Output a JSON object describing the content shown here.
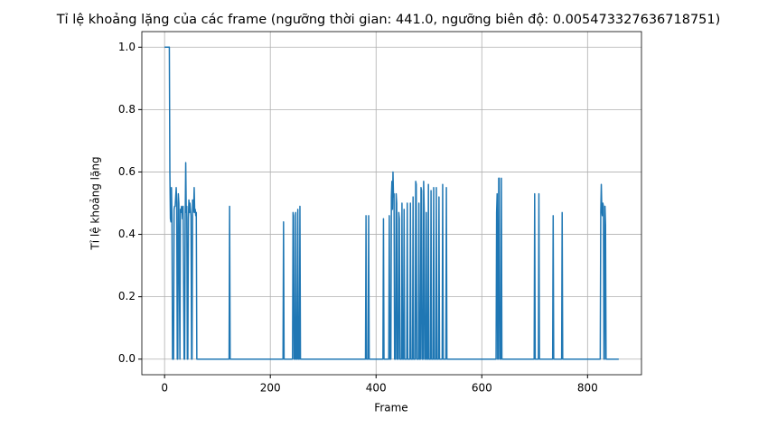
{
  "chart_data": {
    "type": "line",
    "title": "Tỉ lệ khoảng lặng của các frame (ngưỡng thời gian: 441.0, ngưỡng biên độ: 0.005473327636718751)",
    "xlabel": "Frame",
    "ylabel": "Tỉ lệ khoảng lặng",
    "xlim": [
      -43,
      902
    ],
    "ylim": [
      -0.05,
      1.05
    ],
    "xticks": [
      0,
      200,
      400,
      600,
      800
    ],
    "yticks": [
      {
        "value": 0,
        "label": "0.0"
      },
      {
        "value": 0.2,
        "label": "0.2"
      },
      {
        "value": 0.4,
        "label": "0.4"
      },
      {
        "value": 0.6,
        "label": "0.6"
      },
      {
        "value": 0.8,
        "label": "0.8"
      },
      {
        "value": 1,
        "label": "1.0"
      }
    ],
    "grid": true,
    "color": "#1f77b4",
    "x": [
      0,
      9,
      10,
      11,
      12,
      13,
      14,
      15,
      17,
      18,
      19,
      20,
      22,
      23,
      24,
      25,
      26,
      27,
      29,
      30,
      31,
      32,
      33,
      34,
      35,
      37,
      38,
      39,
      40,
      41,
      42,
      43,
      44,
      45,
      46,
      47,
      48,
      50,
      51,
      52,
      53,
      54,
      55,
      56,
      57,
      58,
      59,
      60,
      61,
      122,
      123,
      124,
      224,
      225,
      226,
      242,
      243,
      244,
      245,
      247,
      248,
      249,
      251,
      252,
      253,
      255,
      256,
      257,
      380,
      381,
      382,
      385,
      386,
      387,
      413,
      414,
      415,
      424,
      425,
      426,
      428,
      429,
      430,
      431,
      432,
      433,
      434,
      435,
      437,
      438,
      439,
      440,
      442,
      443,
      444,
      445,
      448,
      449,
      450,
      452,
      453,
      454,
      458,
      459,
      460,
      464,
      465,
      466,
      469,
      470,
      471,
      474,
      475,
      476,
      477,
      480,
      481,
      482,
      484,
      485,
      486,
      487,
      489,
      490,
      491,
      492,
      494,
      495,
      496,
      498,
      499,
      500,
      503,
      504,
      505,
      508,
      509,
      510,
      513,
      514,
      515,
      518,
      519,
      520,
      525,
      526,
      527,
      532,
      533,
      534,
      627,
      628,
      629,
      630,
      631,
      632,
      633,
      634,
      636,
      637,
      638,
      699,
      700,
      701,
      707,
      708,
      709,
      734,
      735,
      736,
      751,
      752,
      753,
      824,
      825,
      826,
      827,
      828,
      829,
      830,
      831,
      832,
      833,
      834,
      835,
      859
    ],
    "y": [
      1,
      1,
      0.6,
      0.45,
      0.44,
      0.55,
      0.45,
      0,
      0,
      0.48,
      0.49,
      0.49,
      0.55,
      0.5,
      0,
      0,
      0.53,
      0.5,
      0,
      0.48,
      0.47,
      0.49,
      0.48,
      0.45,
      0.49,
      0,
      0,
      0.45,
      0.63,
      0.47,
      0.49,
      0,
      0,
      0.45,
      0.51,
      0.47,
      0.5,
      0.46,
      0,
      0,
      0.51,
      0.47,
      0.48,
      0.55,
      0.47,
      0.48,
      0.46,
      0.47,
      0,
      0,
      0.49,
      0,
      0,
      0.44,
      0,
      0,
      0.47,
      0.46,
      0,
      0,
      0.47,
      0,
      0,
      0.48,
      0,
      0,
      0.49,
      0,
      0,
      0.46,
      0,
      0,
      0.46,
      0,
      0,
      0.45,
      0,
      0,
      0.46,
      0,
      0,
      0.52,
      0.57,
      0.48,
      0.6,
      0.52,
      0.53,
      0,
      0,
      0.53,
      0.5,
      0,
      0,
      0.47,
      0.45,
      0,
      0,
      0.5,
      0,
      0,
      0.48,
      0,
      0,
      0.5,
      0,
      0,
      0.5,
      0,
      0,
      0.52,
      0,
      0,
      0.57,
      0.56,
      0,
      0,
      0.5,
      0,
      0,
      0.55,
      0.54,
      0,
      0,
      0.57,
      0.48,
      0,
      0,
      0.47,
      0,
      0,
      0.56,
      0,
      0,
      0.54,
      0,
      0,
      0.55,
      0,
      0,
      0.55,
      0,
      0,
      0.52,
      0,
      0,
      0.56,
      0,
      0,
      0.55,
      0,
      0,
      0.47,
      0.53,
      0,
      0,
      0.58,
      0.58,
      0,
      0,
      0.58,
      0,
      0,
      0.53,
      0,
      0,
      0.53,
      0,
      0,
      0.46,
      0,
      0,
      0.47,
      0,
      0,
      0.47,
      0.56,
      0.48,
      0.46,
      0.5,
      0.49,
      0,
      0,
      0.49,
      0.43,
      0,
      0
    ]
  }
}
